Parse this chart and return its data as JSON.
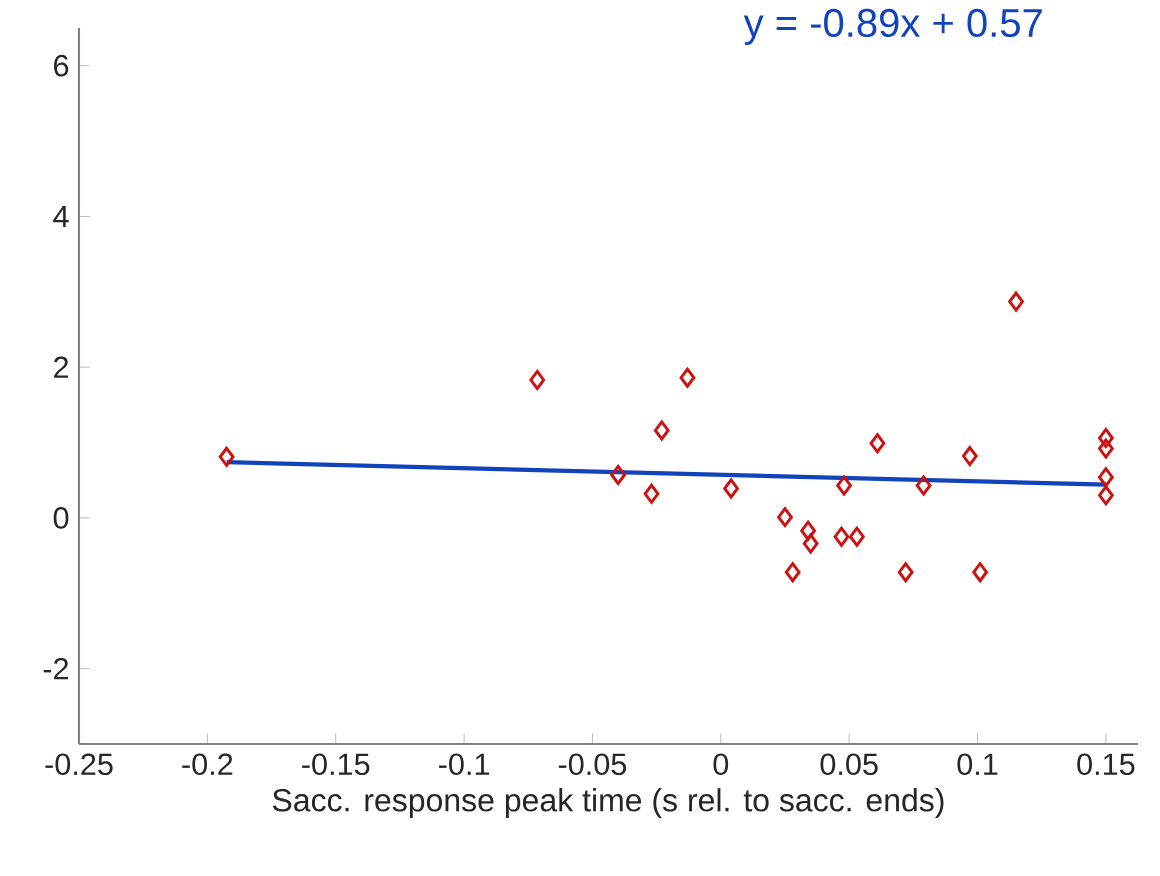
{
  "chart_data": {
    "type": "scatter",
    "xlabel": "Sacc. response peak time (s rel. to sacc. ends)",
    "annotations": [
      "y = -0.89x + 0.57"
    ],
    "xlim": [
      -0.25,
      0.1625
    ],
    "xticks": [
      -0.25,
      -0.2,
      -0.15,
      -0.1,
      -0.05,
      0,
      0.05,
      0.1,
      0.15
    ],
    "ylim": [
      -3,
      6.5
    ],
    "yticks": [
      -2,
      0,
      2,
      4,
      6
    ],
    "line_style": "solid",
    "series": [
      {
        "marker": "diamond",
        "color": "#cc1111",
        "x": [
          -0.1925,
          -0.0715,
          -0.04,
          -0.027,
          -0.023,
          -0.013,
          0.004,
          0.025,
          0.028,
          0.034,
          0.035,
          0.047,
          0.048,
          0.053,
          0.061,
          0.072,
          0.079,
          0.097,
          0.101,
          0.115,
          0.15,
          0.15,
          0.15,
          0.15
        ],
        "values": [
          0.81,
          1.83,
          0.57,
          0.32,
          1.16,
          1.86,
          0.39,
          0.01,
          -0.72,
          -0.17,
          -0.34,
          -0.25,
          0.43,
          -0.25,
          0.99,
          -0.72,
          0.43,
          0.82,
          -0.72,
          2.87,
          1.06,
          0.92,
          0.54,
          0.3
        ]
      },
      {
        "type": "line",
        "marker": "none",
        "color": "#1144bb",
        "x": [
          -0.1925,
          0.15
        ],
        "values": [
          0.74,
          0.44
        ]
      }
    ]
  }
}
